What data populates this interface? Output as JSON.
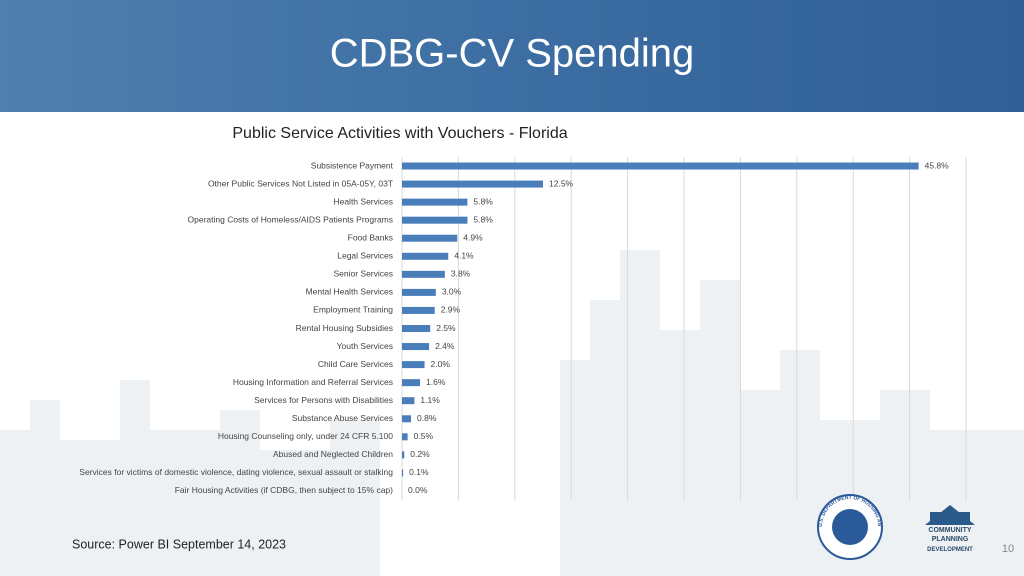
{
  "slide": {
    "title": "CDBG-CV Spending",
    "source": "Source:  Power BI September 14, 2023",
    "page_number": "10",
    "logos": {
      "hud_seal": "U.S. DEPARTMENT OF HOUSING AND URBAN DEVELOPMENT",
      "cpd_lines": [
        "COMMUNITY",
        "PLANNING",
        "DEVELOPMENT"
      ]
    }
  },
  "chart_data": {
    "type": "hbar",
    "title": "Public Service Activities with Vouchers - Florida",
    "categories": [
      "Subsistence Payment",
      "Other Public Services Not Listed in 05A-05Y, 03T",
      "Health Services",
      "Operating Costs of Homeless/AIDS Patients Programs",
      "Food Banks",
      "Legal Services",
      "Senior Services",
      "Mental Health Services",
      "Employment Training",
      "Rental Housing Subsidies",
      "Youth Services",
      "Child Care Services",
      "Housing Information and Referral Services",
      "Services for Persons with Disabilities",
      "Substance Abuse Services",
      "Housing Counseling only, under 24 CFR 5.100",
      "Abused and Neglected Children",
      "Services for victims of domestic violence, dating violence, sexual assault or stalking",
      "Fair Housing Activities (if CDBG, then subject to 15% cap)"
    ],
    "values": [
      45.8,
      12.5,
      5.8,
      5.8,
      4.9,
      4.1,
      3.8,
      3.0,
      2.9,
      2.5,
      2.4,
      2.0,
      1.6,
      1.1,
      0.8,
      0.5,
      0.2,
      0.1,
      0.0
    ],
    "value_labels": [
      "45.8%",
      "12.5%",
      "5.8%",
      "5.8%",
      "4.9%",
      "4.1%",
      "3.8%",
      "3.0%",
      "2.9%",
      "2.5%",
      "2.4%",
      "2.0%",
      "1.6%",
      "1.1%",
      "0.8%",
      "0.5%",
      "0.2%",
      "0.1%",
      "0.0%"
    ],
    "color": "#4a7ebb",
    "xlim": [
      0,
      50
    ],
    "xticks": [
      0,
      5,
      10,
      15,
      20,
      25,
      30,
      35,
      40,
      45,
      50
    ],
    "grid": true
  }
}
